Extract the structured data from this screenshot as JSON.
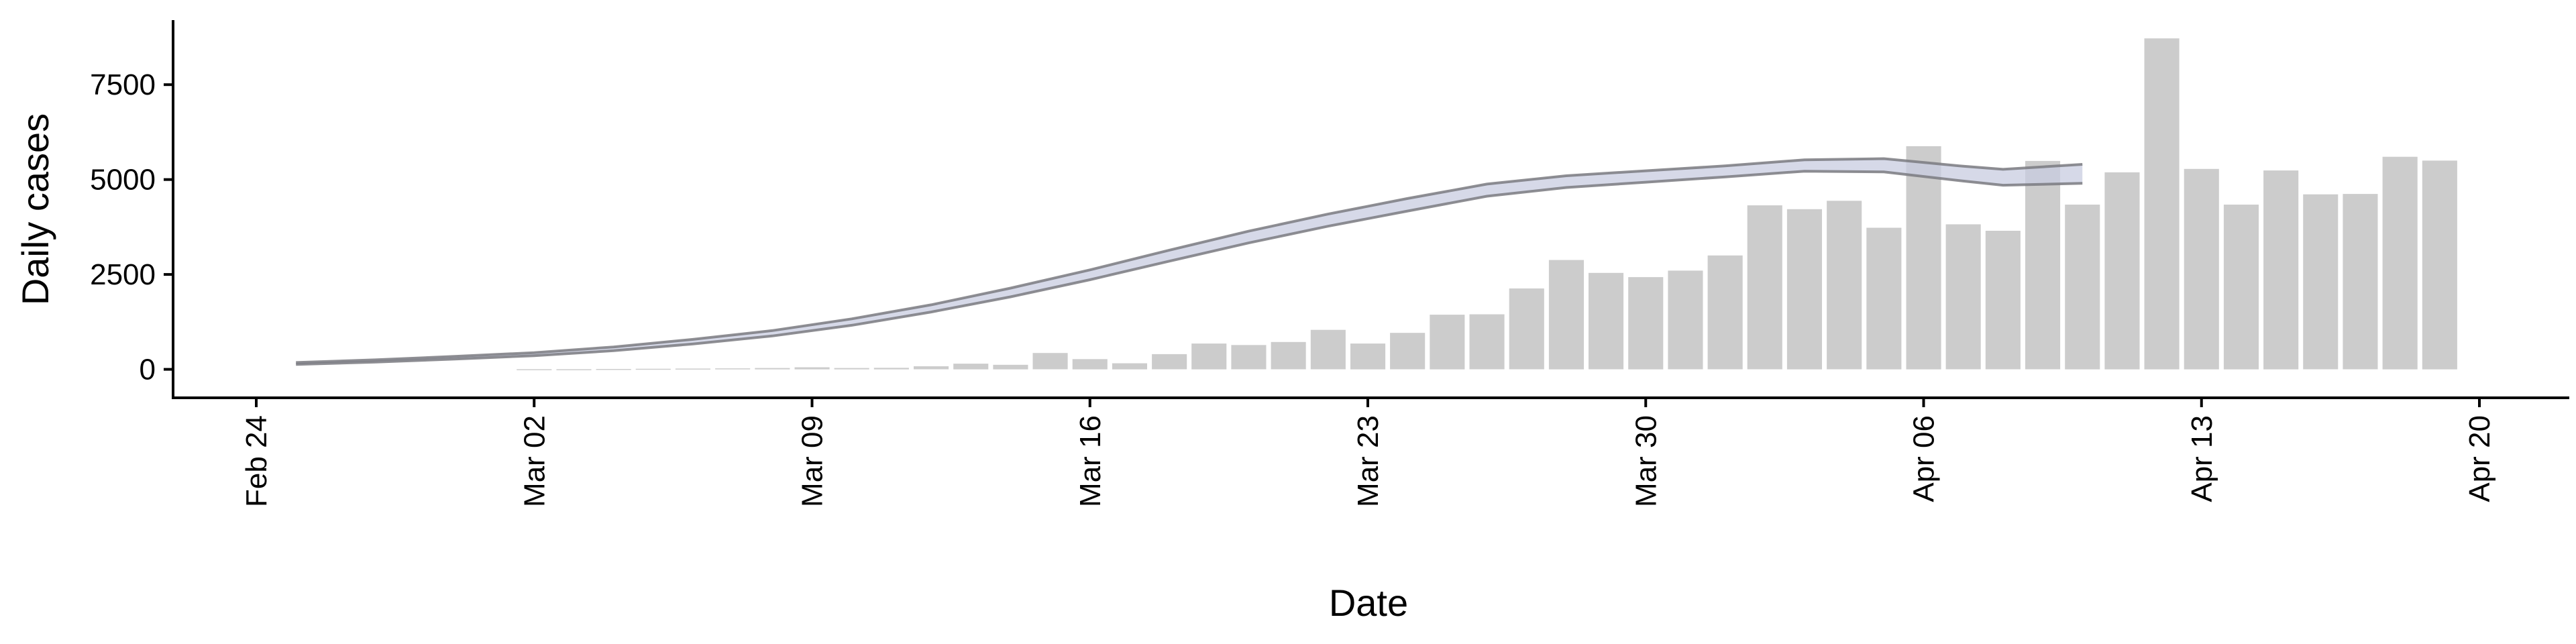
{
  "chart_data": {
    "type": "bar",
    "title": "",
    "xlabel": "Date",
    "ylabel": "Daily cases",
    "x_axis_kind": "date",
    "xlim": [
      "2020-02-24",
      "2020-04-20"
    ],
    "ylim": [
      -750,
      9200
    ],
    "y_ticks": [
      0,
      2500,
      5000,
      7500
    ],
    "y_tick_labels": [
      "0",
      "2500",
      "5000",
      "7500"
    ],
    "x_ticks": [
      "2020-02-24",
      "2020-03-02",
      "2020-03-09",
      "2020-03-16",
      "2020-03-23",
      "2020-03-30",
      "2020-04-06",
      "2020-04-13",
      "2020-04-20"
    ],
    "x_tick_labels": [
      "Feb 24",
      "Mar 02",
      "Mar 09",
      "Mar 16",
      "Mar 23",
      "Mar 30",
      "Apr 06",
      "Apr 13",
      "Apr 20"
    ],
    "grid": false,
    "colors": {
      "bars": "#cccccc",
      "band_fill": "#c8cce0",
      "band_edge": "#7a7a80"
    },
    "series": [
      {
        "type": "bar",
        "x": [
          "2020-03-02",
          "2020-03-03",
          "2020-03-04",
          "2020-03-05",
          "2020-03-06",
          "2020-03-07",
          "2020-03-08",
          "2020-03-09",
          "2020-03-10",
          "2020-03-11",
          "2020-03-12",
          "2020-03-13",
          "2020-03-14",
          "2020-03-15",
          "2020-03-16",
          "2020-03-17",
          "2020-03-18",
          "2020-03-19",
          "2020-03-20",
          "2020-03-21",
          "2020-03-22",
          "2020-03-23",
          "2020-03-24",
          "2020-03-25",
          "2020-03-26",
          "2020-03-27",
          "2020-03-28",
          "2020-03-29",
          "2020-03-30",
          "2020-03-31",
          "2020-04-01",
          "2020-04-02",
          "2020-04-03",
          "2020-04-04",
          "2020-04-05",
          "2020-04-06",
          "2020-04-07",
          "2020-04-08",
          "2020-04-09",
          "2020-04-10",
          "2020-04-11",
          "2020-04-12",
          "2020-04-13",
          "2020-04-14",
          "2020-04-15",
          "2020-04-16",
          "2020-04-17",
          "2020-04-18",
          "2020-04-19"
        ],
        "values": [
          5,
          3,
          10,
          15,
          20,
          25,
          35,
          55,
          35,
          40,
          80,
          150,
          120,
          430,
          270,
          160,
          400,
          680,
          640,
          720,
          1040,
          680,
          960,
          1440,
          1450,
          2130,
          2880,
          2540,
          2430,
          2600,
          3000,
          4320,
          4220,
          4440,
          3730,
          5880,
          3820,
          3650,
          5490,
          4340,
          5190,
          8720,
          5280,
          4340,
          5240,
          4610,
          4620,
          5600,
          5500
        ]
      },
      {
        "type": "band",
        "x": [
          "2020-02-25",
          "2020-02-27",
          "2020-02-29",
          "2020-03-02",
          "2020-03-04",
          "2020-03-06",
          "2020-03-08",
          "2020-03-10",
          "2020-03-12",
          "2020-03-14",
          "2020-03-16",
          "2020-03-18",
          "2020-03-20",
          "2020-03-22",
          "2020-03-24",
          "2020-03-26",
          "2020-03-28",
          "2020-03-30",
          "2020-04-01",
          "2020-04-03",
          "2020-04-05",
          "2020-04-07",
          "2020-04-08",
          "2020-04-10"
        ],
        "upper": [
          180,
          250,
          340,
          440,
          590,
          790,
          1020,
          1330,
          1700,
          2140,
          2620,
          3140,
          3640,
          4090,
          4500,
          4880,
          5100,
          5230,
          5360,
          5520,
          5550,
          5350,
          5270,
          5400
        ],
        "lower": [
          130,
          190,
          270,
          360,
          490,
          670,
          880,
          1160,
          1510,
          1910,
          2360,
          2850,
          3330,
          3770,
          4170,
          4560,
          4790,
          4930,
          5070,
          5220,
          5200,
          4960,
          4850,
          4900
        ]
      }
    ]
  }
}
